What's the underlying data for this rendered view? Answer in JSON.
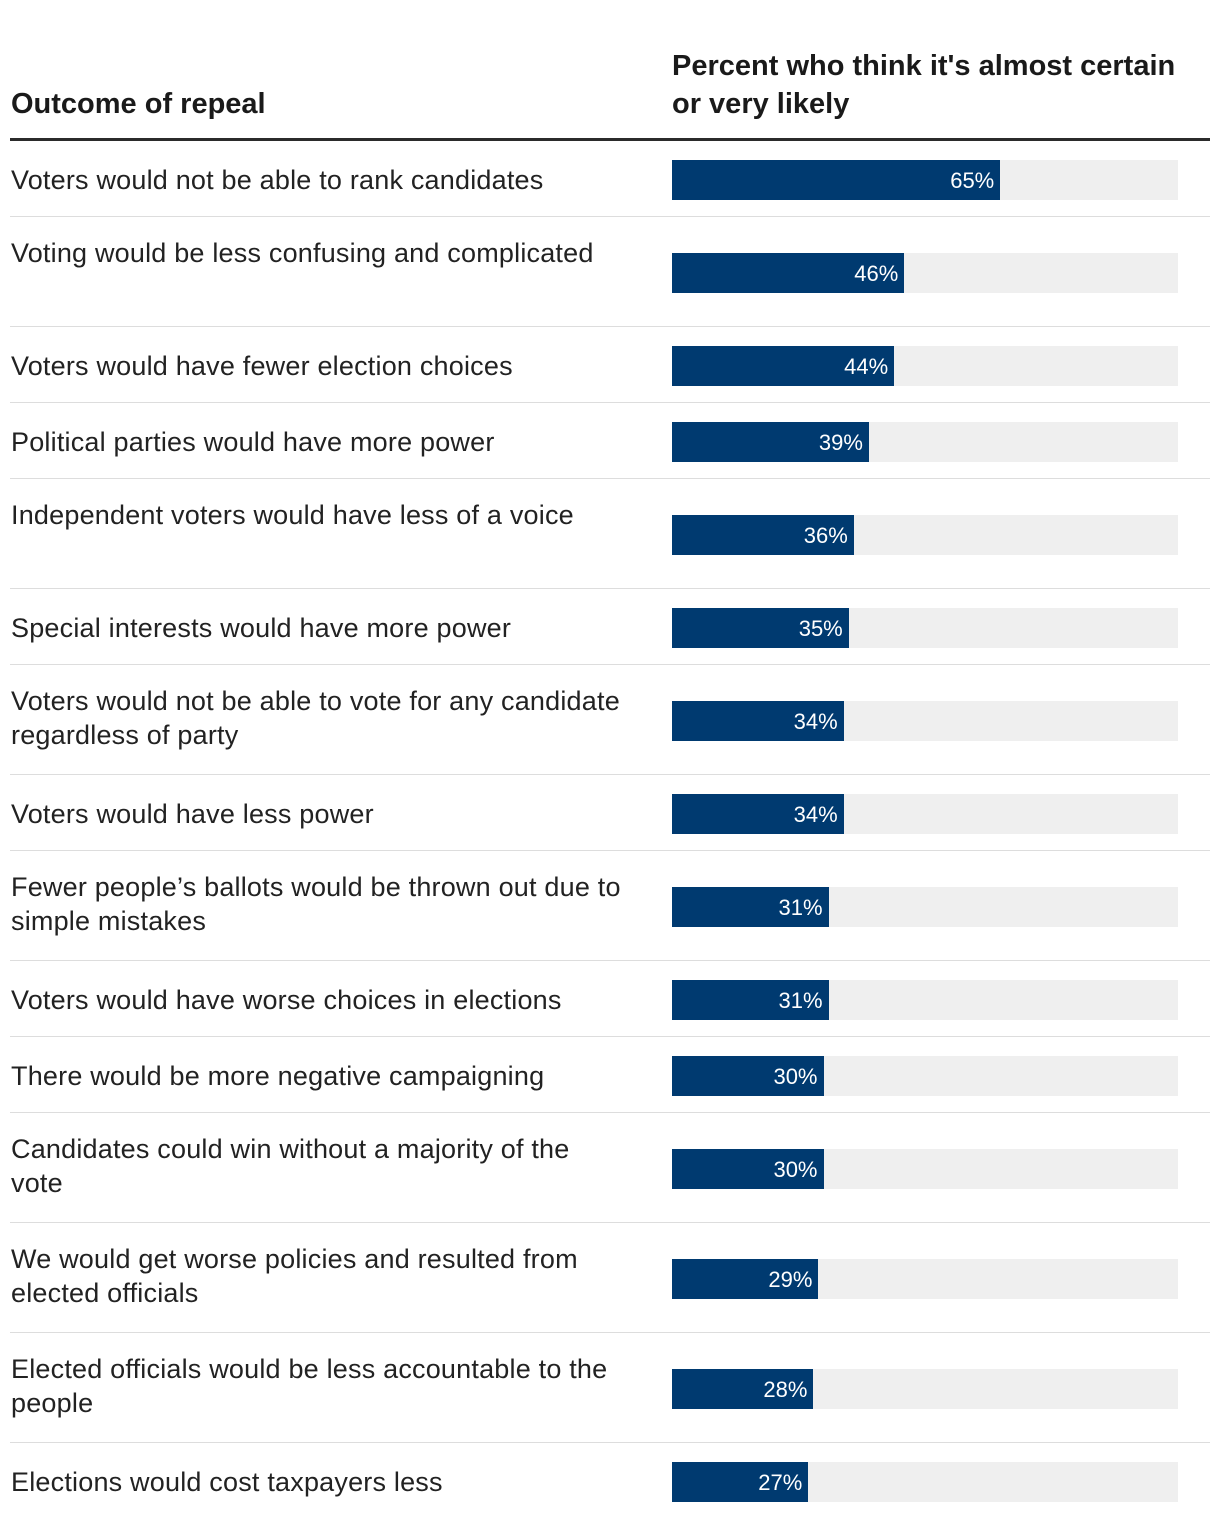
{
  "header": {
    "left_title": "Outcome of repeal",
    "right_title": "Percent who think it's almost certain or very likely"
  },
  "colors": {
    "bar": "#003a70",
    "track": "#efefef",
    "rule": "#2b2b2b",
    "separator": "#dddddd"
  },
  "chart_data": {
    "type": "bar",
    "orientation": "horizontal",
    "title": "",
    "xlabel": "Percent who think it's almost certain or very likely",
    "ylabel": "Outcome of repeal",
    "xlim": [
      0,
      100
    ],
    "categories": [
      "Voters would not be able to rank candidates",
      "Voting would be less confusing and complicated",
      "Voters would have fewer election choices",
      "Political parties would have more power",
      "Independent voters would have less of a voice",
      "Special interests would have more power",
      "Voters would not be able to vote for any candidate regardless of party",
      "Voters would have less power",
      "Fewer people’s ballots would be thrown out due to simple mistakes",
      "Voters would have worse choices in elections",
      "There would be more negative campaigning",
      "Candidates could win without a majority of the vote",
      "We would get worse policies and resulted from elected officials",
      "Elected officials would be less accountable to the people",
      "Elections would cost taxpayers less"
    ],
    "values": [
      65,
      46,
      44,
      39,
      36,
      35,
      34,
      34,
      31,
      31,
      30,
      30,
      29,
      28,
      27
    ],
    "value_labels": [
      "65%",
      "46%",
      "44%",
      "39%",
      "36%",
      "35%",
      "34%",
      "34%",
      "31%",
      "31%",
      "30%",
      "30%",
      "29%",
      "28%",
      "27%"
    ]
  }
}
